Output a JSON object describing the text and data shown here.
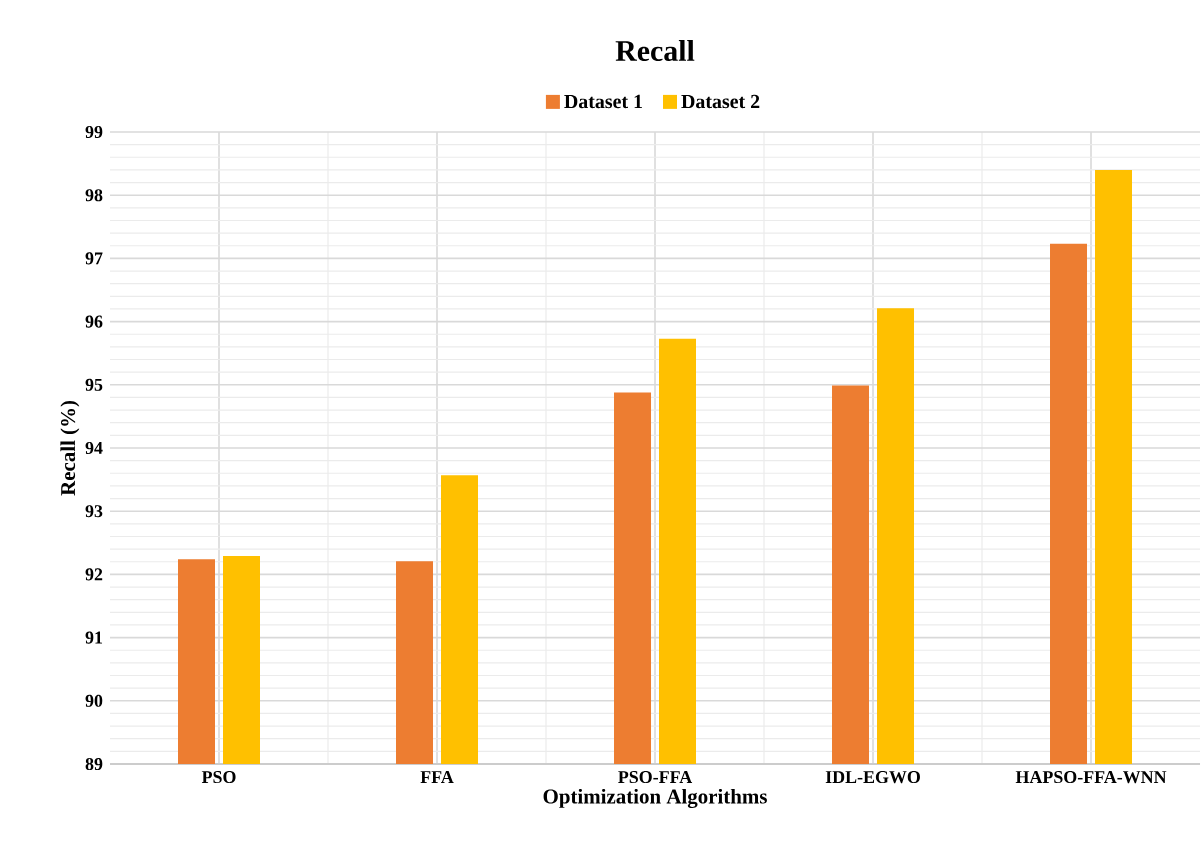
{
  "chart_data": {
    "type": "bar",
    "title": "Recall",
    "xlabel": "Optimization Algorithms",
    "ylabel": "Recall (%)",
    "categories": [
      "PSO",
      "FFA",
      "PSO-FFA",
      "IDL-EGWO",
      "HAPSO-FFA-WNN"
    ],
    "series": [
      {
        "name": "Dataset 1",
        "color": "#ed7d31",
        "values": [
          92.24,
          92.21,
          94.88,
          94.99,
          97.23
        ]
      },
      {
        "name": "Dataset 2",
        "color": "#ffc000",
        "values": [
          92.29,
          93.57,
          95.73,
          96.21,
          98.4
        ]
      }
    ],
    "ylim": [
      89,
      99
    ],
    "yticks": [
      89,
      90,
      91,
      92,
      93,
      94,
      95,
      96,
      97,
      98,
      99
    ],
    "grid": true,
    "legend": "top"
  }
}
